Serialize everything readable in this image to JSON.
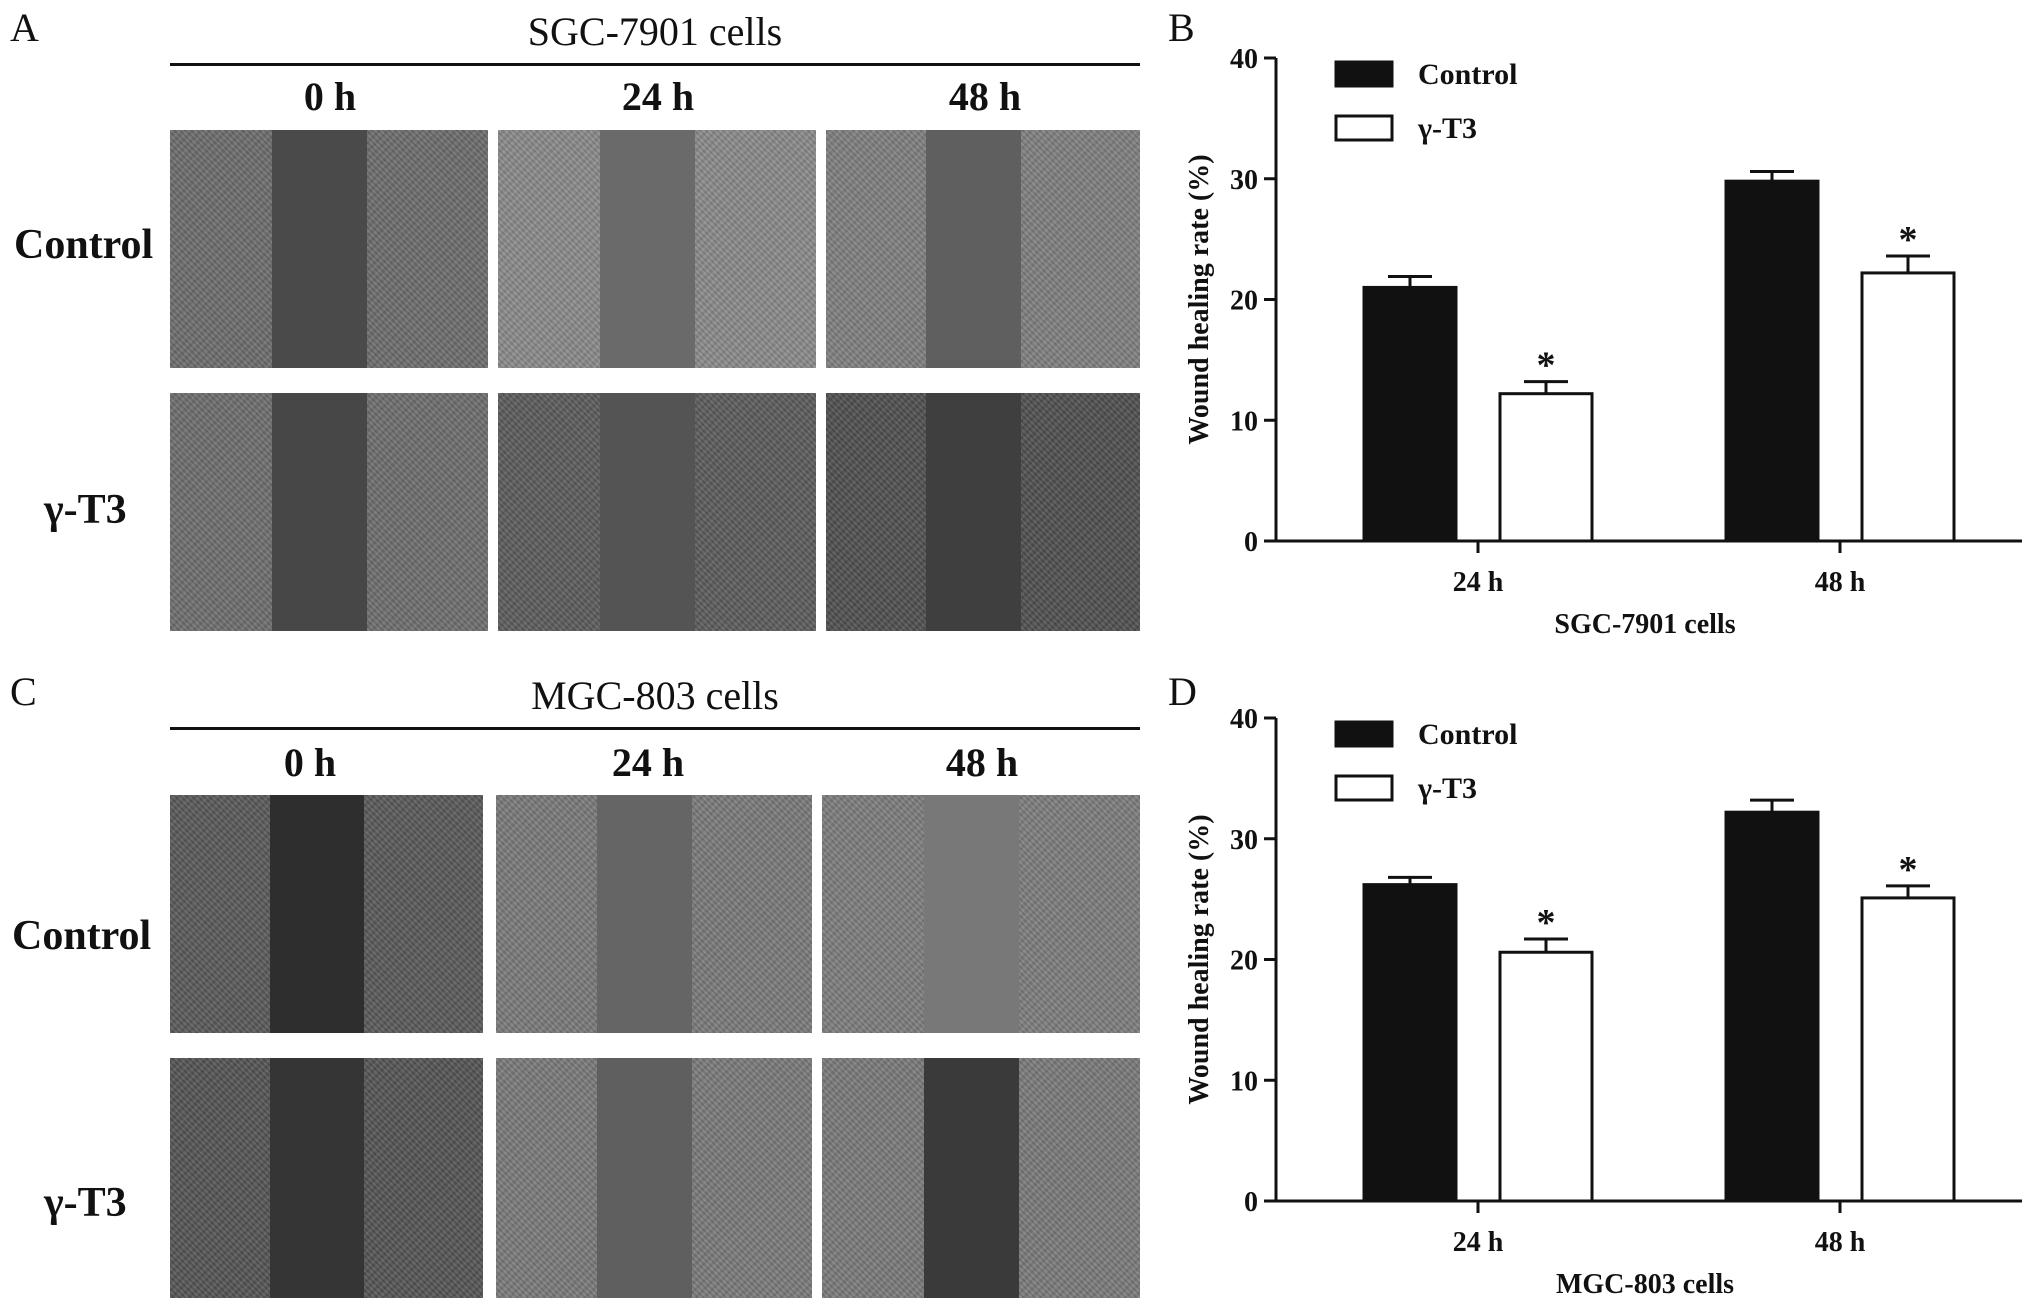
{
  "panels": {
    "A": {
      "letter": "A",
      "title": "SGC-7901 cells",
      "times": [
        "0 h",
        "24 h",
        "48 h"
      ],
      "rows": [
        "Control",
        "γ-T3"
      ],
      "tones": [
        [
          "#6d6d6d",
          "#8a8a8a",
          "#7f7f7f"
        ],
        [
          "#6e6e6e",
          "#5c5c5c",
          "#505050"
        ]
      ],
      "gap_tones": [
        [
          "#4a4a4a",
          "#6a6a6a",
          "#5f5f5f"
        ],
        [
          "#474747",
          "#545454",
          "#3f3f3f"
        ]
      ]
    },
    "C": {
      "letter": "C",
      "title": "MGC-803 cells",
      "times": [
        "0 h",
        "24 h",
        "48 h"
      ],
      "rows": [
        "Control",
        "γ-T3"
      ],
      "tones": [
        [
          "#5a5a5a",
          "#7a7a7a",
          "#7d7d7d"
        ],
        [
          "#555555",
          "#7a7a7a",
          "#7a7a7a"
        ]
      ],
      "gap_tones": [
        [
          "#2e2e2e",
          "#656565",
          "#787878"
        ],
        [
          "#353535",
          "#5f5f5f",
          "#3a3a3a"
        ]
      ]
    }
  },
  "chart_data": [
    {
      "panel": "B",
      "type": "bar",
      "categories": [
        "24 h",
        "48 h"
      ],
      "series": [
        {
          "name": "Control",
          "values": [
            21.0,
            29.8
          ],
          "errors": [
            0.9,
            0.8
          ],
          "color": "#111111"
        },
        {
          "name": "γ-T3",
          "values": [
            12.2,
            22.2
          ],
          "errors": [
            1.0,
            1.4
          ],
          "color": "#ffffff",
          "stars": [
            "*",
            "*"
          ]
        }
      ],
      "xlabel": "SGC-7901 cells",
      "ylabel": "Wound healing rate (%)",
      "ylim": [
        0,
        40
      ],
      "yticks": [
        0,
        10,
        20,
        30,
        40
      ],
      "legend": "top-left",
      "grid": false
    },
    {
      "panel": "D",
      "type": "bar",
      "categories": [
        "24 h",
        "48 h"
      ],
      "series": [
        {
          "name": "Control",
          "values": [
            26.2,
            32.2
          ],
          "errors": [
            0.6,
            1.0
          ],
          "color": "#111111"
        },
        {
          "name": "γ-T3",
          "values": [
            20.6,
            25.1
          ],
          "errors": [
            1.1,
            1.0
          ],
          "color": "#ffffff",
          "stars": [
            "*",
            "*"
          ]
        }
      ],
      "xlabel": "MGC-803 cells",
      "ylabel": "Wound healing rate (%)",
      "ylim": [
        0,
        40
      ],
      "yticks": [
        0,
        10,
        20,
        30,
        40
      ],
      "legend": "top-left",
      "grid": false
    }
  ],
  "chart_letters": [
    "B",
    "D"
  ]
}
